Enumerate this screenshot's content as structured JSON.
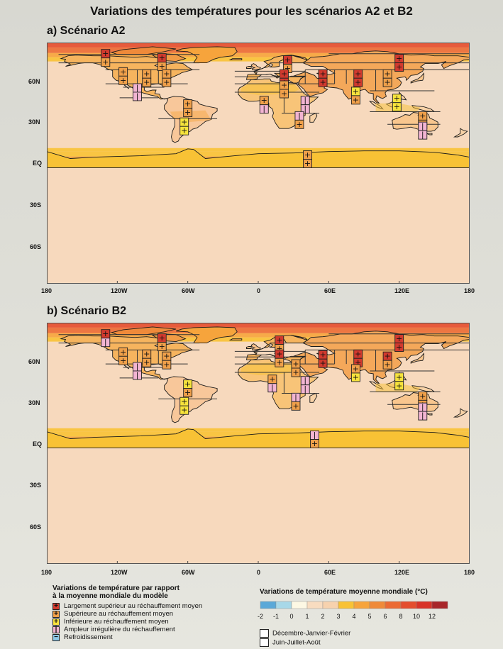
{
  "title": "Variations des températures pour les scénarios A2 et B2",
  "panels": [
    {
      "id": "a",
      "title": "a) Scénario A2"
    },
    {
      "id": "b",
      "title": "b) Scénario B2"
    }
  ],
  "lat_labels": [
    "60N",
    "30N",
    "EQ",
    "30S",
    "60S"
  ],
  "lon_labels": [
    "180",
    "120W",
    "60W",
    "0",
    "60E",
    "120E",
    "180"
  ],
  "legend": {
    "heading_line1": "Variations de température par rapport",
    "heading_line2": "à la moyenne mondiale du modèle",
    "items": [
      {
        "symbol": "+",
        "color": "#d23a2e",
        "label": "Largement supérieur au réchauffement moyen"
      },
      {
        "symbol": "+",
        "color": "#f0a04a",
        "label": "Supérieure au réchauffement moyen"
      },
      {
        "symbol": "+",
        "color": "#f7e33c",
        "label": "Inférieure au réchauffement moyen"
      },
      {
        "symbol": "|",
        "color": "#f2b4d2",
        "label": "Ampleur irrégulière du réchauffement"
      },
      {
        "symbol": "−",
        "color": "#8ec8e8",
        "label": "Refroidissement"
      }
    ],
    "scale_heading": "Variations de température moyenne mondiale (°C)",
    "scale_values": [
      "-2",
      "-1",
      "0",
      "1",
      "2",
      "3",
      "4",
      "5",
      "6",
      "8",
      "10",
      "12"
    ],
    "scale_colors": [
      "#5aa8d8",
      "#a8d8e8",
      "#fdf8e4",
      "#f8dcc0",
      "#f7d2ae",
      "#f8c235",
      "#f6a43c",
      "#ef8a3a",
      "#eb6a34",
      "#e44d2e",
      "#d83228",
      "#a8262a"
    ],
    "seasons": [
      "Décembre-Janvier-Février",
      "Juin-Juillet-Août"
    ]
  }
}
